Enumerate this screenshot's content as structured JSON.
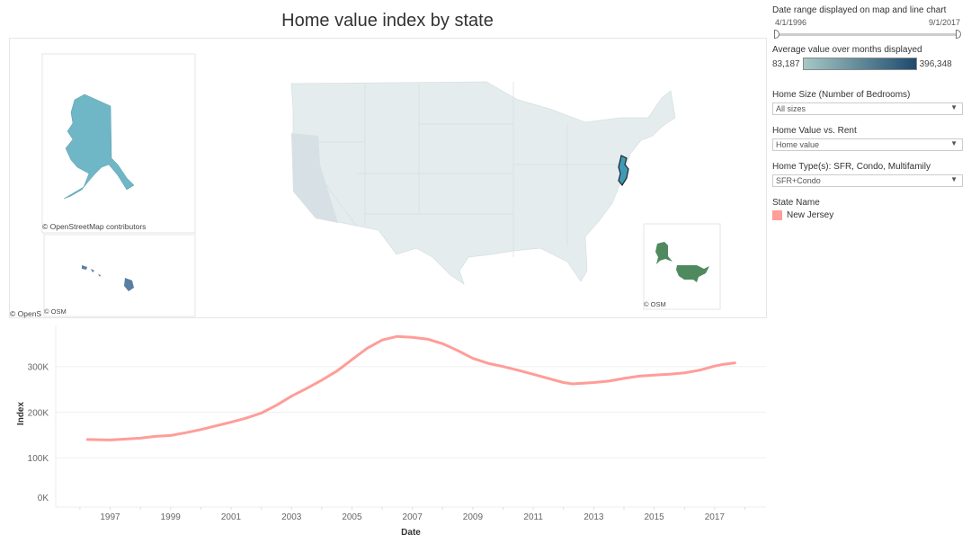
{
  "title": "Home value index by state",
  "map": {
    "osm_full": "© OpenStreetMap contributors",
    "osm_short": "© OSM",
    "osm_partial": "© OpenS",
    "highlight_state": "New Jersey",
    "highlight_color": "#3f9ab8",
    "base_color": "#e3ebec"
  },
  "controls": {
    "date_range": {
      "label": "Date range displayed on map and line chart",
      "start": "4/1/1996",
      "end": "9/1/2017"
    },
    "color_legend": {
      "label": "Average value over months displayed",
      "min": "83,187",
      "max": "396,348",
      "color_low": "#a5c8c4",
      "color_high": "#1f4a6e"
    },
    "home_size": {
      "label": "Home Size (Number of Bedrooms)",
      "value": "All sizes"
    },
    "value_vs_rent": {
      "label": "Home Value vs. Rent",
      "value": "Home value"
    },
    "home_type": {
      "label": "Home Type(s): SFR, Condo, Multifamily",
      "value": "SFR+Condo"
    },
    "state_legend": {
      "label": "State Name",
      "items": [
        {
          "name": "New Jersey",
          "color": "#ff9d98"
        }
      ]
    }
  },
  "chart_data": {
    "type": "line",
    "xlabel": "Date",
    "ylabel": "Index",
    "x_ticks": [
      "1997",
      "1999",
      "2001",
      "2003",
      "2005",
      "2007",
      "2009",
      "2011",
      "2013",
      "2015",
      "2017"
    ],
    "y_ticks": [
      "0K",
      "100K",
      "200K",
      "300K"
    ],
    "ylim": [
      0,
      390
    ],
    "xlim": [
      1995.2,
      2018.7
    ],
    "grid": "horizontal",
    "series": [
      {
        "name": "New Jersey",
        "color": "#ff9d98",
        "x": [
          1996.25,
          1997,
          1997.5,
          1998,
          1998.5,
          1999,
          1999.5,
          2000,
          2000.5,
          2001,
          2001.5,
          2002,
          2002.5,
          2003,
          2003.5,
          2004,
          2004.5,
          2005,
          2005.5,
          2006,
          2006.5,
          2007,
          2007.5,
          2008,
          2008.5,
          2009,
          2009.5,
          2010,
          2010.5,
          2011,
          2011.5,
          2012,
          2012.3,
          2013,
          2013.5,
          2014,
          2014.5,
          2015,
          2015.5,
          2016,
          2016.5,
          2017,
          2017.3,
          2017.67
        ],
        "y": [
          140,
          139,
          141,
          143,
          147,
          149,
          155,
          162,
          170,
          178,
          187,
          198,
          215,
          235,
          252,
          270,
          290,
          315,
          340,
          358,
          366,
          364,
          360,
          350,
          335,
          318,
          307,
          300,
          292,
          283,
          274,
          265,
          262,
          265,
          268,
          274,
          279,
          281,
          283,
          286,
          292,
          301,
          305,
          308
        ]
      }
    ]
  }
}
